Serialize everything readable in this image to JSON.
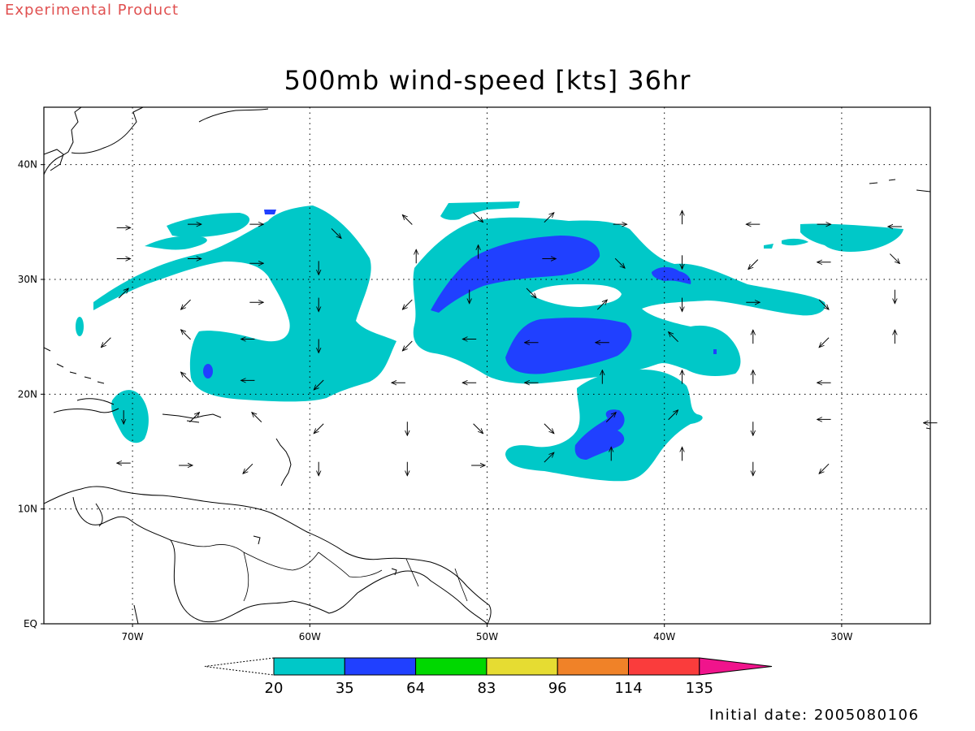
{
  "header": {
    "product_label": "Experimental Product",
    "title": "500mb wind-speed [kts] 36hr"
  },
  "footer": {
    "initial_date": "Initial date: 2005080106"
  },
  "map": {
    "lon_range": [
      -75,
      -25
    ],
    "lat_range": [
      0,
      45
    ],
    "x_ticks": [
      {
        "lon": -70,
        "label": "70W"
      },
      {
        "lon": -60,
        "label": "60W"
      },
      {
        "lon": -50,
        "label": "50W"
      },
      {
        "lon": -40,
        "label": "40W"
      },
      {
        "lon": -30,
        "label": "30W"
      }
    ],
    "y_ticks": [
      {
        "lat": 0,
        "label": "EQ"
      },
      {
        "lat": 10,
        "label": "10N"
      },
      {
        "lat": 20,
        "label": "20N"
      },
      {
        "lat": 30,
        "label": "30N"
      },
      {
        "lat": 40,
        "label": "40N"
      }
    ],
    "grid": "dotted"
  },
  "colorbar": {
    "thresholds": [
      "20",
      "35",
      "64",
      "83",
      "96",
      "114",
      "135"
    ],
    "colors": [
      "#00c8c8",
      "#2040ff",
      "#00d800",
      "#e6dc32",
      "#f08228",
      "#fa3c3c",
      "#f0148c"
    ]
  },
  "wind_vectors": [
    {
      "lon": -70.5,
      "lat": 34.5,
      "dir": "E"
    },
    {
      "lon": -66.5,
      "lat": 34.8,
      "dir": "E"
    },
    {
      "lon": -63.0,
      "lat": 34.8,
      "dir": "E"
    },
    {
      "lon": -58.5,
      "lat": 34.0,
      "dir": "SE"
    },
    {
      "lon": -54.5,
      "lat": 35.2,
      "dir": "NW"
    },
    {
      "lon": -50.5,
      "lat": 35.4,
      "dir": "SE"
    },
    {
      "lon": -46.5,
      "lat": 35.4,
      "dir": "NE"
    },
    {
      "lon": -42.5,
      "lat": 34.8,
      "dir": "E"
    },
    {
      "lon": -39.0,
      "lat": 35.4,
      "dir": "N"
    },
    {
      "lon": -35.0,
      "lat": 34.8,
      "dir": "W"
    },
    {
      "lon": -31.0,
      "lat": 34.8,
      "dir": "E"
    },
    {
      "lon": -27.0,
      "lat": 34.6,
      "dir": "W"
    },
    {
      "lon": -70.5,
      "lat": 31.8,
      "dir": "E"
    },
    {
      "lon": -66.5,
      "lat": 31.8,
      "dir": "E"
    },
    {
      "lon": -63.0,
      "lat": 31.4,
      "dir": "E"
    },
    {
      "lon": -59.5,
      "lat": 31.0,
      "dir": "S"
    },
    {
      "lon": -54.0,
      "lat": 32.0,
      "dir": "N"
    },
    {
      "lon": -50.5,
      "lat": 32.4,
      "dir": "N"
    },
    {
      "lon": -46.5,
      "lat": 31.8,
      "dir": "E"
    },
    {
      "lon": -42.5,
      "lat": 31.4,
      "dir": "SE"
    },
    {
      "lon": -39.0,
      "lat": 31.5,
      "dir": "S"
    },
    {
      "lon": -35.0,
      "lat": 31.3,
      "dir": "SW"
    },
    {
      "lon": -31.0,
      "lat": 31.5,
      "dir": "W"
    },
    {
      "lon": -27.0,
      "lat": 31.8,
      "dir": "SE"
    },
    {
      "lon": -70.5,
      "lat": 28.8,
      "dir": "NE"
    },
    {
      "lon": -67.0,
      "lat": 27.8,
      "dir": "SW"
    },
    {
      "lon": -63.0,
      "lat": 28.0,
      "dir": "E"
    },
    {
      "lon": -59.5,
      "lat": 27.8,
      "dir": "S"
    },
    {
      "lon": -54.5,
      "lat": 27.8,
      "dir": "SW"
    },
    {
      "lon": -51.0,
      "lat": 28.5,
      "dir": "S"
    },
    {
      "lon": -47.5,
      "lat": 28.8,
      "dir": "SE"
    },
    {
      "lon": -43.5,
      "lat": 27.8,
      "dir": "NE"
    },
    {
      "lon": -39.0,
      "lat": 27.8,
      "dir": "S"
    },
    {
      "lon": -35.0,
      "lat": 28.0,
      "dir": "E"
    },
    {
      "lon": -31.0,
      "lat": 27.8,
      "dir": "SE"
    },
    {
      "lon": -27.0,
      "lat": 28.5,
      "dir": "S"
    },
    {
      "lon": -71.5,
      "lat": 24.5,
      "dir": "SW"
    },
    {
      "lon": -67.0,
      "lat": 25.2,
      "dir": "NW"
    },
    {
      "lon": -63.5,
      "lat": 24.8,
      "dir": "W"
    },
    {
      "lon": -59.5,
      "lat": 24.2,
      "dir": "S"
    },
    {
      "lon": -54.5,
      "lat": 24.2,
      "dir": "SW"
    },
    {
      "lon": -51.0,
      "lat": 24.8,
      "dir": "W"
    },
    {
      "lon": -47.5,
      "lat": 24.5,
      "dir": "W"
    },
    {
      "lon": -43.5,
      "lat": 24.5,
      "dir": "W"
    },
    {
      "lon": -39.5,
      "lat": 25.0,
      "dir": "NW"
    },
    {
      "lon": -35.0,
      "lat": 25.0,
      "dir": "N"
    },
    {
      "lon": -31.0,
      "lat": 24.5,
      "dir": "SW"
    },
    {
      "lon": -27.0,
      "lat": 25.0,
      "dir": "N"
    },
    {
      "lon": -67.0,
      "lat": 21.5,
      "dir": "NW"
    },
    {
      "lon": -63.5,
      "lat": 21.2,
      "dir": "W"
    },
    {
      "lon": -59.5,
      "lat": 20.8,
      "dir": "SW"
    },
    {
      "lon": -55.0,
      "lat": 21.0,
      "dir": "W"
    },
    {
      "lon": -51.0,
      "lat": 21.0,
      "dir": "W"
    },
    {
      "lon": -47.5,
      "lat": 21.0,
      "dir": "W"
    },
    {
      "lon": -43.5,
      "lat": 21.5,
      "dir": "N"
    },
    {
      "lon": -39.0,
      "lat": 21.5,
      "dir": "N"
    },
    {
      "lon": -35.0,
      "lat": 21.5,
      "dir": "N"
    },
    {
      "lon": -31.0,
      "lat": 21.0,
      "dir": "W"
    },
    {
      "lon": -70.5,
      "lat": 18.0,
      "dir": "S"
    },
    {
      "lon": -66.5,
      "lat": 18.0,
      "dir": "NE"
    },
    {
      "lon": -63.0,
      "lat": 18.0,
      "dir": "NW"
    },
    {
      "lon": -59.5,
      "lat": 17.0,
      "dir": "SW"
    },
    {
      "lon": -54.5,
      "lat": 17.0,
      "dir": "S"
    },
    {
      "lon": -50.5,
      "lat": 17.0,
      "dir": "SE"
    },
    {
      "lon": -46.5,
      "lat": 17.0,
      "dir": "SE"
    },
    {
      "lon": -43.0,
      "lat": 18.0,
      "dir": "NE"
    },
    {
      "lon": -39.5,
      "lat": 18.2,
      "dir": "NE"
    },
    {
      "lon": -35.0,
      "lat": 17.0,
      "dir": "S"
    },
    {
      "lon": -31.0,
      "lat": 17.8,
      "dir": "W"
    },
    {
      "lon": -25.0,
      "lat": 17.5,
      "dir": "W"
    },
    {
      "lon": -70.5,
      "lat": 14.0,
      "dir": "W"
    },
    {
      "lon": -67.0,
      "lat": 13.8,
      "dir": "E"
    },
    {
      "lon": -63.5,
      "lat": 13.5,
      "dir": "SW"
    },
    {
      "lon": -59.5,
      "lat": 13.5,
      "dir": "S"
    },
    {
      "lon": -54.5,
      "lat": 13.5,
      "dir": "S"
    },
    {
      "lon": -50.5,
      "lat": 13.8,
      "dir": "E"
    },
    {
      "lon": -46.5,
      "lat": 14.5,
      "dir": "NE"
    },
    {
      "lon": -43.0,
      "lat": 14.8,
      "dir": "N"
    },
    {
      "lon": -39.0,
      "lat": 14.8,
      "dir": "N"
    },
    {
      "lon": -35.0,
      "lat": 13.5,
      "dir": "S"
    },
    {
      "lon": -31.0,
      "lat": 13.5,
      "dir": "SW"
    }
  ]
}
